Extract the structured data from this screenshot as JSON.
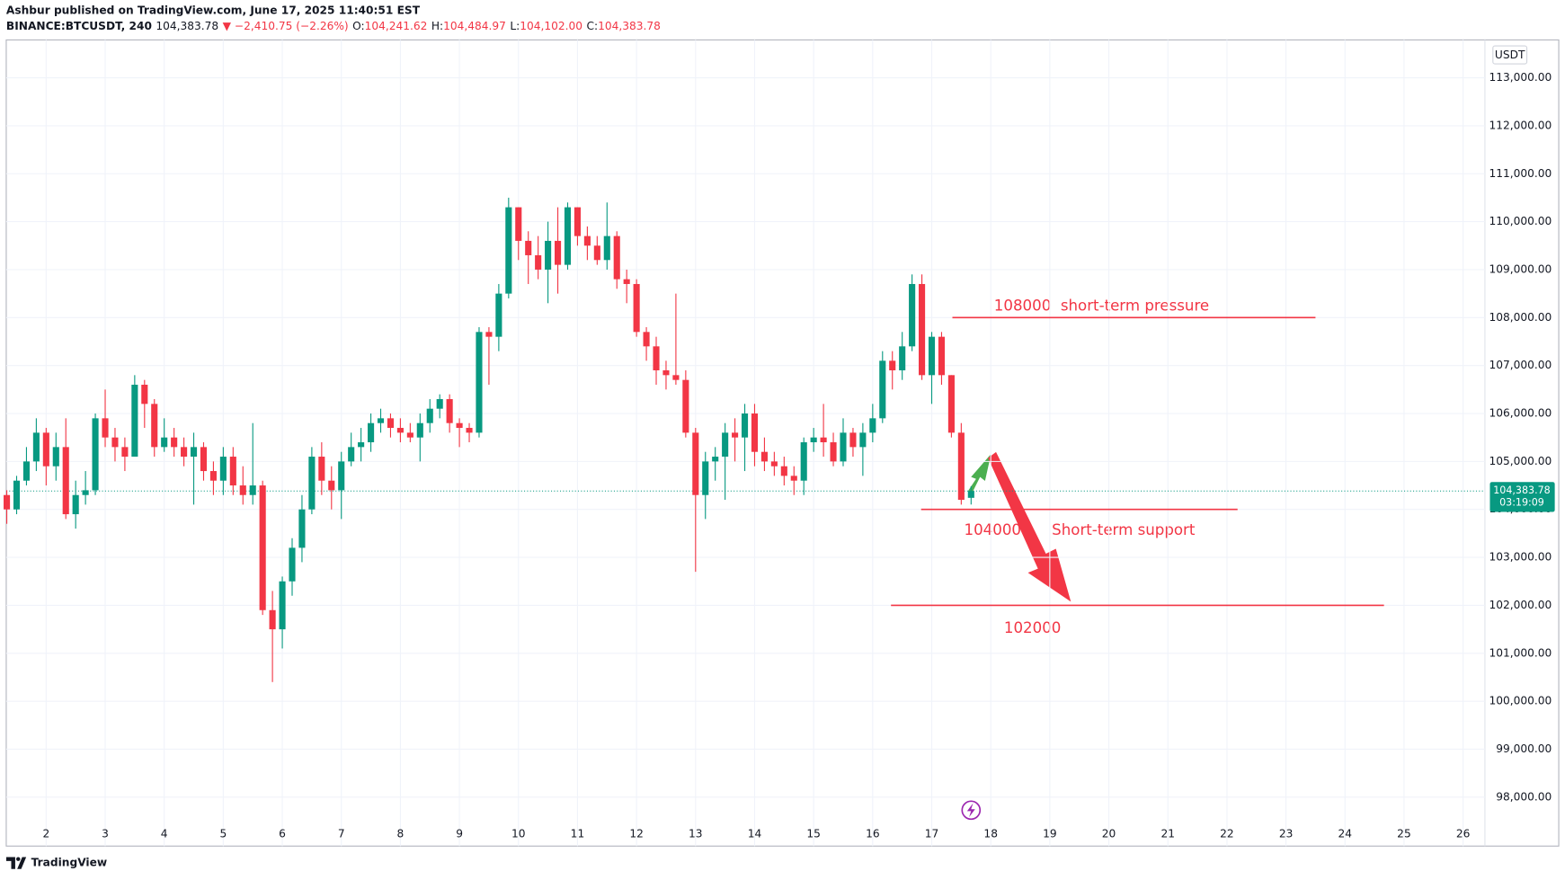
{
  "header": {
    "author_line": "Ashbur published on TradingView.com, June 17, 2025 11:40:51 EST",
    "symbol": "BINANCE:BTCUSDT, 240",
    "price": "104,383.78",
    "change": "▼ −2,410.75 (−2.26%)",
    "ohlc": [
      {
        "label": "O:",
        "value": "104,241.62"
      },
      {
        "label": "H:",
        "value": "104,484.97"
      },
      {
        "label": "L:",
        "value": "104,102.00"
      },
      {
        "label": "C:",
        "value": "104,383.78"
      }
    ]
  },
  "brand": "TradingView",
  "chart_data": {
    "type": "candlestick",
    "currency": "USDT",
    "price_tag": "104,383.78",
    "countdown": "03:19:09",
    "up_color": "#089981",
    "down_color": "#f23645",
    "grid": true,
    "xlim": [
      1.324,
      26.37
    ],
    "ylim": [
      96980,
      113790
    ],
    "xticks": [
      2,
      3,
      4,
      5,
      6,
      7,
      8,
      9,
      10,
      11,
      12,
      13,
      14,
      15,
      16,
      17,
      18,
      19,
      20,
      21,
      22,
      23,
      24,
      25,
      26
    ],
    "yticks": [
      {
        "value": 98000,
        "label": "98,000.00"
      },
      {
        "value": 99000,
        "label": "99,000.00"
      },
      {
        "value": 100000,
        "label": "100,000.00"
      },
      {
        "value": 101000,
        "label": "101,000.00"
      },
      {
        "value": 102000,
        "label": "102,000.00"
      },
      {
        "value": 103000,
        "label": "103,000.00"
      },
      {
        "value": 104000,
        "label": "104,000.00"
      },
      {
        "value": 105000,
        "label": "105,000.00"
      },
      {
        "value": 106000,
        "label": "106,000.00"
      },
      {
        "value": 107000,
        "label": "107,000.00"
      },
      {
        "value": 108000,
        "label": "108,000.00"
      },
      {
        "value": 109000,
        "label": "109,000.00"
      },
      {
        "value": 110000,
        "label": "110,000.00"
      },
      {
        "value": 111000,
        "label": "111,000.00"
      },
      {
        "value": 112000,
        "label": "112,000.00"
      },
      {
        "value": 113000,
        "label": "113,000.00"
      }
    ],
    "x": [
      1.3333,
      1.5,
      1.6667,
      1.8333,
      2,
      2.1667,
      2.3333,
      2.5,
      2.6667,
      2.8333,
      3,
      3.1667,
      3.3333,
      3.5,
      3.6667,
      3.8333,
      4,
      4.1667,
      4.3333,
      4.5,
      4.6667,
      4.8333,
      5,
      5.1667,
      5.3333,
      5.5,
      5.6667,
      5.8333,
      6,
      6.1667,
      6.3333,
      6.5,
      6.6667,
      6.8333,
      7,
      7.1667,
      7.3333,
      7.5,
      7.6667,
      7.8333,
      8,
      8.1667,
      8.3333,
      8.5,
      8.6667,
      8.8333,
      9,
      9.1667,
      9.3333,
      9.5,
      9.6667,
      9.8333,
      10,
      10.1667,
      10.3333,
      10.5,
      10.6667,
      10.8333,
      11,
      11.1667,
      11.3333,
      11.5,
      11.6667,
      11.8333,
      12,
      12.1667,
      12.3333,
      12.5,
      12.6667,
      12.8333,
      13,
      13.1667,
      13.3333,
      13.5,
      13.6667,
      13.8333,
      14,
      14.1667,
      14.3333,
      14.5,
      14.6667,
      14.8333,
      15,
      15.1667,
      15.3333,
      15.5,
      15.6667,
      15.8333,
      16,
      16.1667,
      16.3333,
      16.5,
      16.6667,
      16.8333,
      17,
      17.1667,
      17.3333,
      17.5,
      17.6667
    ],
    "open": [
      104300,
      104000,
      104600,
      105000,
      105600,
      104900,
      105300,
      103900,
      104300,
      104400,
      105900,
      105500,
      105300,
      105100,
      106600,
      106200,
      105300,
      105500,
      105300,
      105100,
      105300,
      104800,
      104600,
      105100,
      104500,
      104300,
      104500,
      101900,
      101500,
      102500,
      103200,
      104000,
      105100,
      104600,
      104400,
      105000,
      105300,
      105400,
      105800,
      105900,
      105700,
      105600,
      105500,
      105800,
      106100,
      106300,
      105800,
      105700,
      105600,
      107700,
      107600,
      108500,
      110300,
      109600,
      109300,
      109000,
      109600,
      109100,
      110300,
      109700,
      109500,
      109200,
      109700,
      108800,
      108700,
      107700,
      107400,
      106900,
      106800,
      106700,
      105600,
      104300,
      105000,
      105100,
      105600,
      105500,
      106000,
      105200,
      105000,
      104900,
      104700,
      104600,
      105400,
      105500,
      105400,
      105000,
      105600,
      105300,
      105600,
      105900,
      107100,
      106900,
      107400,
      108700,
      106800,
      107600,
      106800,
      105600,
      104241.62
    ],
    "high": [
      104400,
      104700,
      105300,
      105900,
      105700,
      105600,
      105900,
      104600,
      104800,
      106000,
      106500,
      105700,
      105500,
      106800,
      106700,
      106300,
      105900,
      105700,
      105500,
      105600,
      105400,
      105000,
      105300,
      105300,
      104900,
      105800,
      104600,
      102300,
      102600,
      103400,
      104300,
      105300,
      105400,
      104900,
      105200,
      105600,
      105700,
      106000,
      106100,
      106000,
      105900,
      105800,
      106000,
      106300,
      106400,
      106400,
      105900,
      105800,
      107800,
      107800,
      108700,
      110500,
      110300,
      109800,
      109700,
      110000,
      110300,
      110400,
      110300,
      109900,
      109700,
      110400,
      109800,
      109000,
      108800,
      107800,
      107600,
      107100,
      108500,
      106900,
      105700,
      105200,
      105300,
      105800,
      105900,
      106200,
      106200,
      105500,
      105200,
      105100,
      104900,
      105500,
      105700,
      106200,
      105600,
      105900,
      105700,
      105800,
      106200,
      107300,
      107300,
      107700,
      108900,
      108900,
      107700,
      107700,
      106800,
      105800,
      104484.97
    ],
    "low": [
      103700,
      103900,
      104500,
      104800,
      104500,
      104600,
      103800,
      103600,
      104100,
      104300,
      105300,
      105000,
      104800,
      105100,
      105700,
      105100,
      105200,
      105100,
      104900,
      104100,
      104600,
      104300,
      104300,
      104300,
      104100,
      104100,
      101800,
      100400,
      101100,
      102200,
      102900,
      103900,
      104300,
      104000,
      103800,
      104900,
      105000,
      105200,
      105600,
      105500,
      105400,
      105400,
      105000,
      105600,
      105900,
      105600,
      105300,
      105400,
      105500,
      106600,
      107300,
      108400,
      109200,
      108700,
      108800,
      108300,
      108500,
      109000,
      109500,
      109200,
      109100,
      109000,
      108600,
      108300,
      107600,
      107100,
      106600,
      106500,
      106600,
      105500,
      102700,
      103800,
      104600,
      104200,
      105000,
      104800,
      104900,
      104800,
      104700,
      104500,
      104300,
      104300,
      105200,
      105100,
      104900,
      104900,
      105100,
      104700,
      105400,
      105800,
      106500,
      106700,
      107300,
      106700,
      106200,
      106600,
      105500,
      104100,
      104102
    ],
    "close": [
      104000,
      104600,
      105000,
      105600,
      104900,
      105300,
      103900,
      104300,
      104400,
      105900,
      105500,
      105300,
      105100,
      106600,
      106200,
      105300,
      105500,
      105300,
      105100,
      105300,
      104800,
      104600,
      105100,
      104500,
      104300,
      104500,
      101900,
      101500,
      102500,
      103200,
      104000,
      105100,
      104600,
      104400,
      105000,
      105300,
      105400,
      105800,
      105900,
      105700,
      105600,
      105500,
      105800,
      106100,
      106300,
      105800,
      105700,
      105600,
      107700,
      107600,
      108500,
      110300,
      109600,
      109300,
      109000,
      109600,
      109100,
      110300,
      109700,
      109500,
      109200,
      109700,
      108800,
      108700,
      107700,
      107400,
      106900,
      106800,
      106700,
      105600,
      104300,
      105000,
      105100,
      105600,
      105500,
      106000,
      105200,
      105000,
      104900,
      104700,
      104600,
      105400,
      105500,
      105400,
      105000,
      105600,
      105300,
      105600,
      105900,
      107100,
      106900,
      107400,
      108700,
      106800,
      107600,
      106800,
      105600,
      104200,
      104383.78
    ],
    "levels": [
      {
        "value": 108000,
        "x": [
          17.35,
          23.5
        ],
        "color": "#f23645"
      },
      {
        "value": 104000,
        "x": [
          16.82,
          22.18
        ],
        "color": "#f23645"
      },
      {
        "value": 102000,
        "x": [
          16.31,
          24.66
        ],
        "color": "#f23645"
      }
    ],
    "annotations": [
      "108000  short-term pressure",
      "104000",
      "Short-term support",
      "102000"
    ]
  }
}
